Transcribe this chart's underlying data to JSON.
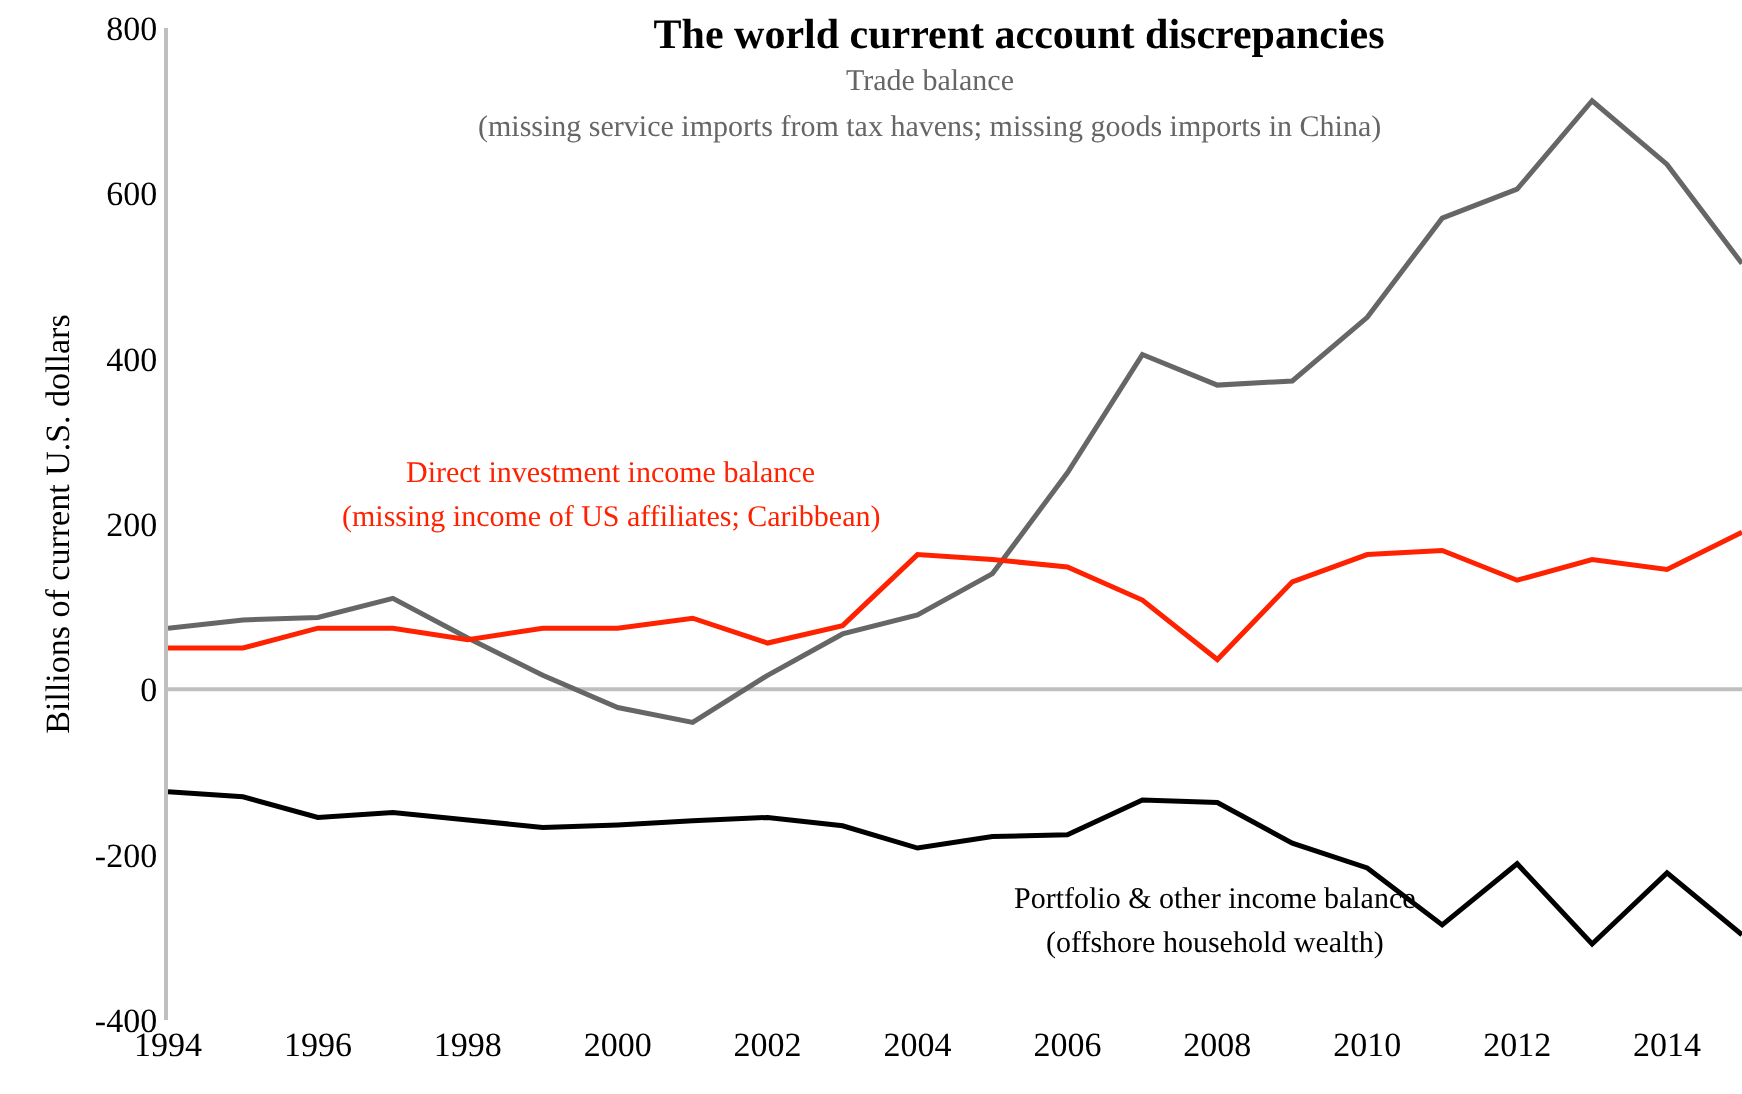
{
  "chart_data": {
    "type": "line",
    "title": "The world current account discrepancies",
    "ylabel": "Billions of current U.S. dollars",
    "x": [
      1994,
      1995,
      1996,
      1997,
      1998,
      1999,
      2000,
      2001,
      2002,
      2003,
      2004,
      2005,
      2006,
      2007,
      2008,
      2009,
      2010,
      2011,
      2012,
      2013,
      2014,
      2015
    ],
    "series": [
      {
        "name": "Trade balance",
        "color": "#666666",
        "values": [
          74,
          84,
          87,
          110,
          62,
          17,
          -22,
          -40,
          17,
          67,
          90,
          140,
          262,
          405,
          368,
          373,
          450,
          570,
          605,
          712,
          635,
          515
        ]
      },
      {
        "name": "Direct investment income balance",
        "color": "#ff2200",
        "values": [
          50,
          50,
          74,
          74,
          60,
          74,
          74,
          86,
          56,
          77,
          163,
          157,
          148,
          108,
          36,
          130,
          163,
          168,
          132,
          157,
          145,
          190
        ]
      },
      {
        "name": "Portfolio & other income balance",
        "color": "#000000",
        "values": [
          -124,
          -130,
          -155,
          -149,
          -158,
          -167,
          -164,
          -159,
          -155,
          -165,
          -192,
          -178,
          -176,
          -134,
          -137,
          -186,
          -216,
          -285,
          -211,
          -308,
          -222,
          -297
        ]
      }
    ],
    "annotations": [
      "(missing service imports from tax havens; missing goods imports in China)",
      "(missing income of US affiliates; Caribbean)",
      "(offshore household wealth)"
    ],
    "xlim": [
      1994,
      2015
    ],
    "xticks": [
      1994,
      1996,
      1998,
      2000,
      2002,
      2004,
      2006,
      2008,
      2010,
      2012,
      2014
    ],
    "ylim": [
      -400,
      800
    ],
    "yticks": [
      -400,
      -200,
      0,
      200,
      400,
      600,
      800
    ],
    "ref_lines": [
      {
        "axis": "y",
        "value": 0,
        "color": "#bfbfbf"
      }
    ],
    "grid": false,
    "legend": false,
    "marker": "none",
    "line_style": "solid"
  }
}
